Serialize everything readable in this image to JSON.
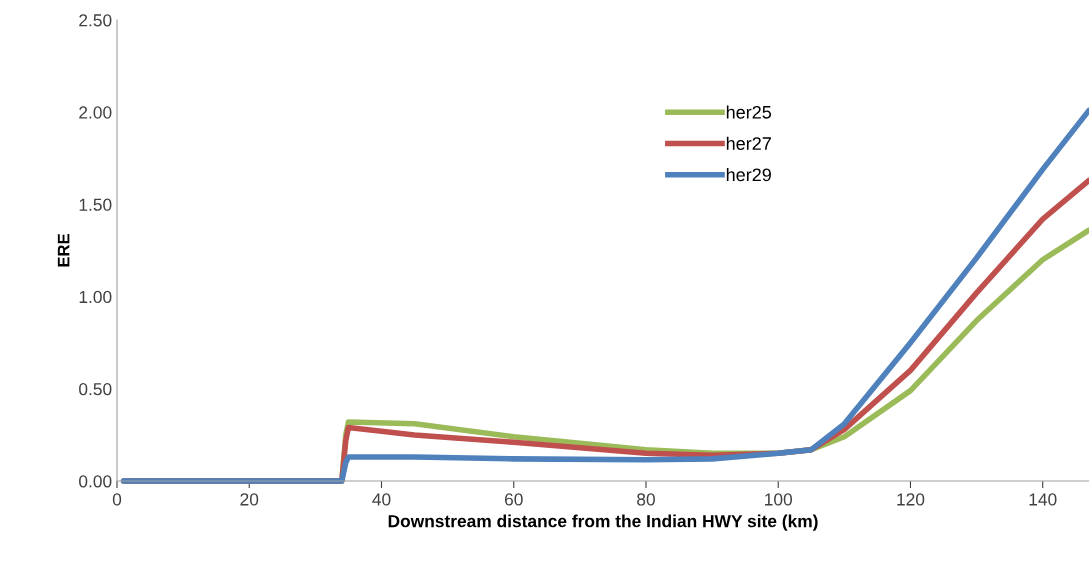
{
  "chart_data": {
    "type": "line",
    "xlabel": "Downstream distance from the Indian HWY site (km)",
    "ylabel": "ERE",
    "x": [
      1,
      34,
      34.6,
      35,
      45,
      60,
      80,
      90,
      100,
      105,
      110,
      120,
      130,
      140,
      147
    ],
    "series": [
      {
        "name": "her25",
        "color": "#9bbb59",
        "values": [
          0,
          0,
          0.25,
          0.32,
          0.31,
          0.24,
          0.17,
          0.15,
          0.15,
          0.17,
          0.24,
          0.49,
          0.87,
          1.2,
          1.36
        ]
      },
      {
        "name": "her27",
        "color": "#c0504d",
        "values": [
          0,
          0,
          0.22,
          0.29,
          0.25,
          0.21,
          0.15,
          0.14,
          0.15,
          0.17,
          0.28,
          0.6,
          1.02,
          1.42,
          1.63
        ]
      },
      {
        "name": "her29",
        "color": "#4f81bd",
        "values": [
          0,
          0,
          0.1,
          0.13,
          0.13,
          0.12,
          0.115,
          0.12,
          0.15,
          0.17,
          0.31,
          0.75,
          1.21,
          1.69,
          2.01
        ]
      }
    ],
    "xlim": [
      0,
      147
    ],
    "xticks": [
      0,
      20,
      40,
      60,
      80,
      100,
      120,
      140
    ],
    "ylim": [
      0,
      2.5
    ],
    "yticks": [
      {
        "value": 0,
        "label": "0.00"
      },
      {
        "value": 0.5,
        "label": "0.50"
      },
      {
        "value": 1,
        "label": "1.00"
      },
      {
        "value": 1.5,
        "label": "1.50"
      },
      {
        "value": 2,
        "label": "2.00"
      },
      {
        "value": 2.5,
        "label": "2.50"
      }
    ],
    "legend": "top",
    "grid": false,
    "marker": "none",
    "line_style": "solid"
  }
}
